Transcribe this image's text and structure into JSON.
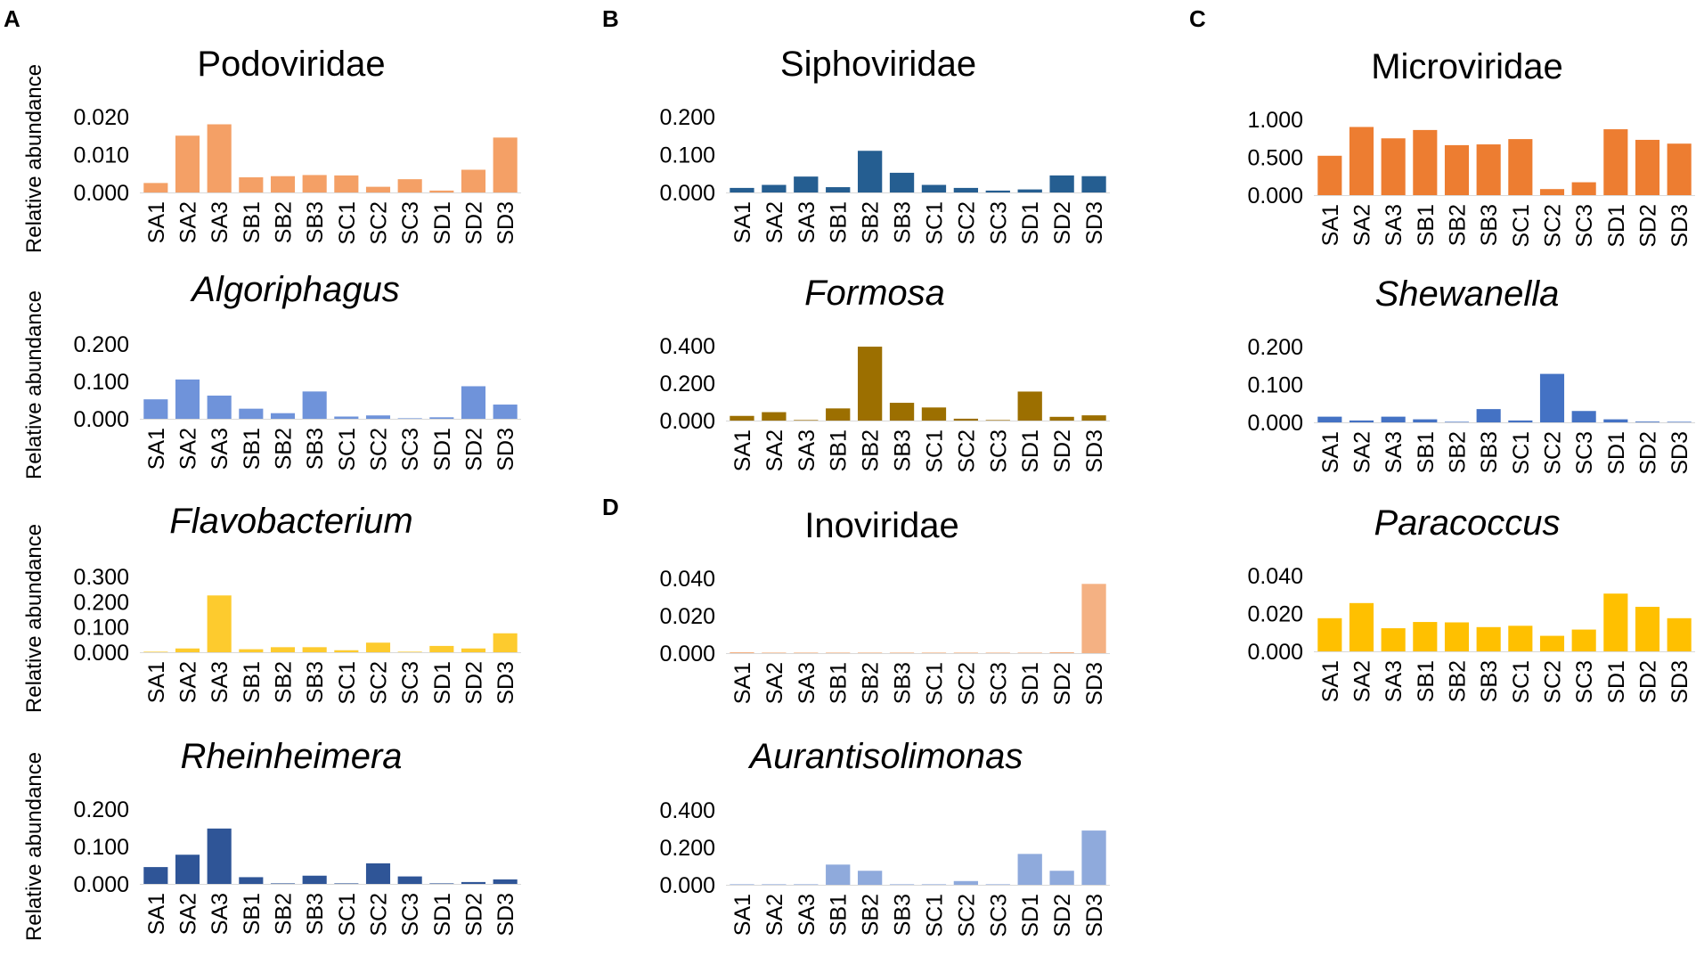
{
  "panel_letters": [
    "A",
    "B",
    "C",
    "D"
  ],
  "y_axis_label": "Relative abundance",
  "categories": [
    "SA1",
    "SA2",
    "SA3",
    "SB1",
    "SB2",
    "SB3",
    "SC1",
    "SC2",
    "SC3",
    "SD1",
    "SD2",
    "SD3"
  ],
  "chart_data": [
    {
      "type": "bar",
      "title": "Podoviridae",
      "italic": false,
      "color": "#F4A066",
      "yticks": [
        "0.000",
        "0.010",
        "0.020"
      ],
      "ylim": [
        0,
        0.02
      ],
      "categories": [
        "SA1",
        "SA2",
        "SA3",
        "SB1",
        "SB2",
        "SB3",
        "SC1",
        "SC2",
        "SC3",
        "SD1",
        "SD2",
        "SD3"
      ],
      "values": [
        0.0025,
        0.015,
        0.018,
        0.004,
        0.0043,
        0.0046,
        0.0045,
        0.0015,
        0.0035,
        0.0005,
        0.006,
        0.0145
      ]
    },
    {
      "type": "bar",
      "title": "Algoriphagus",
      "italic": true,
      "color": "#6F93DA",
      "yticks": [
        "0.000",
        "0.100",
        "0.200"
      ],
      "ylim": [
        0,
        0.2
      ],
      "categories": [
        "SA1",
        "SA2",
        "SA3",
        "SB1",
        "SB2",
        "SB3",
        "SC1",
        "SC2",
        "SC3",
        "SD1",
        "SD2",
        "SD3"
      ],
      "values": [
        0.052,
        0.105,
        0.062,
        0.027,
        0.015,
        0.073,
        0.006,
        0.009,
        0.001,
        0.004,
        0.087,
        0.038
      ]
    },
    {
      "type": "bar",
      "title": "Flavobacterium",
      "italic": true,
      "color": "#FDCB2E",
      "yticks": [
        "0.000",
        "0.100",
        "0.200",
        "0.300"
      ],
      "ylim": [
        0,
        0.3
      ],
      "categories": [
        "SA1",
        "SA2",
        "SA3",
        "SB1",
        "SB2",
        "SB3",
        "SC1",
        "SC2",
        "SC3",
        "SD1",
        "SD2",
        "SD3"
      ],
      "values": [
        0.002,
        0.015,
        0.225,
        0.012,
        0.02,
        0.02,
        0.008,
        0.038,
        0.001,
        0.025,
        0.015,
        0.075
      ]
    },
    {
      "type": "bar",
      "title": "Rheinheimera",
      "italic": true,
      "color": "#2F5597",
      "yticks": [
        "0.000",
        "0.100",
        "0.200"
      ],
      "ylim": [
        0,
        0.2
      ],
      "categories": [
        "SA1",
        "SA2",
        "SA3",
        "SB1",
        "SB2",
        "SB3",
        "SC1",
        "SC2",
        "SC3",
        "SD1",
        "SD2",
        "SD3"
      ],
      "values": [
        0.045,
        0.078,
        0.148,
        0.018,
        0.001,
        0.022,
        0.001,
        0.055,
        0.02,
        0.001,
        0.005,
        0.012
      ]
    },
    {
      "type": "bar",
      "title": "Siphoviridae",
      "italic": false,
      "color": "#255E91",
      "yticks": [
        "0.000",
        "0.100",
        "0.200"
      ],
      "ylim": [
        0,
        0.2
      ],
      "categories": [
        "SA1",
        "SA2",
        "SA3",
        "SB1",
        "SB2",
        "SB3",
        "SC1",
        "SC2",
        "SC3",
        "SD1",
        "SD2",
        "SD3"
      ],
      "values": [
        0.012,
        0.02,
        0.042,
        0.014,
        0.11,
        0.052,
        0.02,
        0.012,
        0.005,
        0.008,
        0.045,
        0.043
      ]
    },
    {
      "type": "bar",
      "title": "Formosa",
      "italic": true,
      "color": "#9C6F00",
      "yticks": [
        "0.000",
        "0.200",
        "0.400"
      ],
      "ylim": [
        0,
        0.4
      ],
      "categories": [
        "SA1",
        "SA2",
        "SA3",
        "SB1",
        "SB2",
        "SB3",
        "SC1",
        "SC2",
        "SC3",
        "SD1",
        "SD2",
        "SD3"
      ],
      "values": [
        0.025,
        0.045,
        0.001,
        0.065,
        0.395,
        0.095,
        0.07,
        0.01,
        0.001,
        0.155,
        0.02,
        0.028
      ]
    },
    {
      "type": "bar",
      "title": "Inoviridae",
      "italic": false,
      "color": "#F4B183",
      "yticks": [
        "0.000",
        "0.020",
        "0.040"
      ],
      "ylim": [
        0,
        0.04
      ],
      "categories": [
        "SA1",
        "SA2",
        "SA3",
        "SB1",
        "SB2",
        "SB3",
        "SC1",
        "SC2",
        "SC3",
        "SD1",
        "SD2",
        "SD3"
      ],
      "values": [
        0.0005,
        0.0003,
        0.0003,
        0.0003,
        0.0003,
        0.0003,
        0.0003,
        0.0003,
        0.0002,
        0.0002,
        0.0005,
        0.037
      ]
    },
    {
      "type": "bar",
      "title": "Aurantisolimonas",
      "italic": true,
      "color": "#8FAADC",
      "yticks": [
        "0.000",
        "0.200",
        "0.400"
      ],
      "ylim": [
        0,
        0.4
      ],
      "categories": [
        "SA1",
        "SA2",
        "SA3",
        "SB1",
        "SB2",
        "SB3",
        "SC1",
        "SC2",
        "SC3",
        "SD1",
        "SD2",
        "SD3"
      ],
      "values": [
        0.002,
        0.001,
        0.001,
        0.108,
        0.075,
        0.001,
        0.001,
        0.02,
        0.001,
        0.165,
        0.075,
        0.29
      ]
    },
    {
      "type": "bar",
      "title": "Microviridae",
      "italic": false,
      "color": "#ED7D31",
      "yticks": [
        "0.000",
        "0.500",
        "1.000"
      ],
      "ylim": [
        0,
        1.0
      ],
      "categories": [
        "SA1",
        "SA2",
        "SA3",
        "SB1",
        "SB2",
        "SB3",
        "SC1",
        "SC2",
        "SC3",
        "SD1",
        "SD2",
        "SD3"
      ],
      "values": [
        0.52,
        0.9,
        0.75,
        0.86,
        0.66,
        0.67,
        0.74,
        0.08,
        0.17,
        0.87,
        0.73,
        0.68
      ]
    },
    {
      "type": "bar",
      "title": "Shewanella",
      "italic": true,
      "color": "#4472C4",
      "yticks": [
        "0.000",
        "0.100",
        "0.200"
      ],
      "ylim": [
        0,
        0.2
      ],
      "categories": [
        "SA1",
        "SA2",
        "SA3",
        "SB1",
        "SB2",
        "SB3",
        "SC1",
        "SC2",
        "SC3",
        "SD1",
        "SD2",
        "SD3"
      ],
      "values": [
        0.015,
        0.005,
        0.015,
        0.008,
        0.001,
        0.035,
        0.005,
        0.128,
        0.03,
        0.008,
        0.002,
        0.001
      ]
    },
    {
      "type": "bar",
      "title": "Paracoccus",
      "italic": true,
      "color": "#FFC000",
      "yticks": [
        "0.000",
        "0.020",
        "0.040"
      ],
      "ylim": [
        0,
        0.04
      ],
      "categories": [
        "SA1",
        "SA2",
        "SA3",
        "SB1",
        "SB2",
        "SB3",
        "SC1",
        "SC2",
        "SC3",
        "SD1",
        "SD2",
        "SD3"
      ],
      "values": [
        0.0175,
        0.0255,
        0.0122,
        0.0155,
        0.0153,
        0.0128,
        0.0135,
        0.0082,
        0.0115,
        0.0305,
        0.0235,
        0.0175
      ]
    }
  ]
}
